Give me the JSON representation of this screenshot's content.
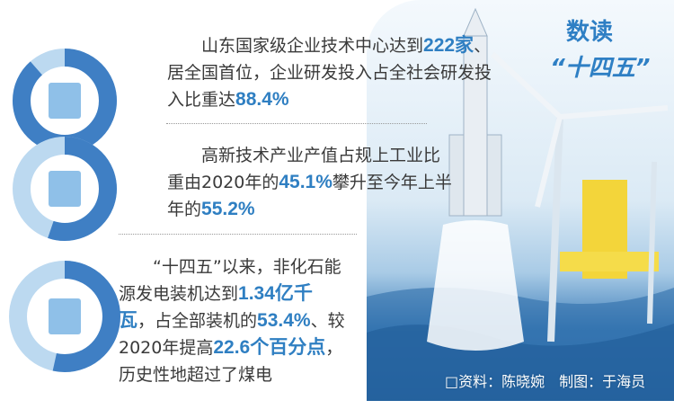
{
  "header": {
    "title": "数读",
    "subtitle": "“十四五”"
  },
  "stats": [
    {
      "icon": "building-icon",
      "value_percent": 88.4,
      "lines": [
        [
          "山东国家级企业技术中心达到",
          "222家",
          "、"
        ],
        [
          "居全国首位，企业研发投入占全社会研发投",
          "",
          ""
        ],
        [
          "入比重达",
          "88.4%",
          ""
        ]
      ]
    },
    {
      "icon": "chip-icon",
      "value_percent": 55.2,
      "lines": [
        [
          "高新技术产业产值占规上工业比",
          "",
          ""
        ],
        [
          "重由2020年的",
          "45.1%",
          "攀升至今年上半"
        ],
        [
          "年的",
          "55.2%",
          ""
        ]
      ]
    },
    {
      "icon": "power-tower-icon",
      "value_percent": 53.4,
      "lines": [
        [
          "“十四五”以来，非化石能",
          "",
          ""
        ],
        [
          "源发电装机达到",
          "1.34亿千",
          ""
        ],
        [
          "",
          "瓦",
          "，占全部装机的"
        ],
        [
          "53.4%",
          "",
          "、较"
        ],
        [
          "2020年提高",
          "22.6个百分点",
          "，"
        ],
        [
          "历史性地超过了煤电",
          "",
          ""
        ]
      ]
    }
  ],
  "credit": "□资料：陈晓婉　制图：于海员",
  "colors": {
    "accent": "#2f7fc2",
    "ring_light": "#bcd9f0",
    "ring_dark": "#3f7fc4"
  }
}
